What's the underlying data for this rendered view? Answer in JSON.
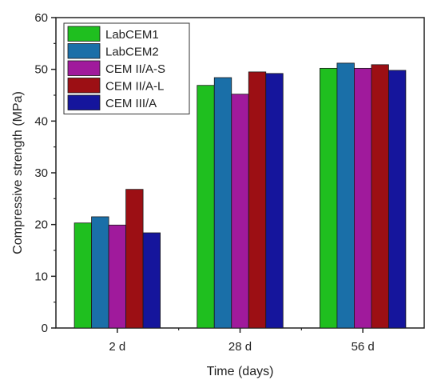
{
  "chart_data": {
    "type": "bar",
    "title": "",
    "xlabel": "Time (days)",
    "ylabel": "Compressive strength (MPa)",
    "ylim": [
      0,
      60
    ],
    "yticks": [
      0,
      10,
      20,
      30,
      40,
      50,
      60
    ],
    "categories": [
      "2 d",
      "28 d",
      "56 d"
    ],
    "legend_position": "top-left",
    "series": [
      {
        "name": "LabCEM1",
        "color": "#1fbf1f",
        "values": [
          20.3,
          46.9,
          50.2
        ]
      },
      {
        "name": "LabCEM2",
        "color": "#1a6fa8",
        "values": [
          21.5,
          48.4,
          51.2
        ]
      },
      {
        "name": "CEM II/A-S",
        "color": "#a01a9c",
        "values": [
          19.9,
          45.2,
          50.2
        ]
      },
      {
        "name": "CEM II/A-L",
        "color": "#9c0f14",
        "values": [
          26.8,
          49.5,
          50.9
        ]
      },
      {
        "name": "CEM III/A",
        "color": "#15159c",
        "values": [
          18.4,
          49.2,
          49.8
        ]
      }
    ]
  }
}
